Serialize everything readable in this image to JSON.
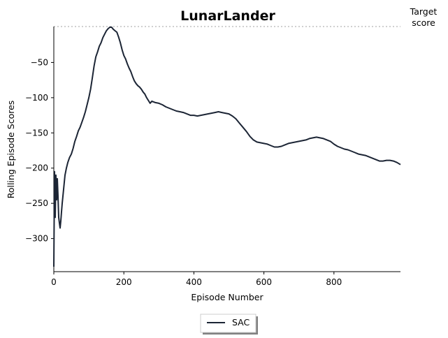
{
  "chart_data": {
    "type": "line",
    "title": "LunarLander",
    "xlabel": "Episode Number",
    "ylabel": "Rolling Episode Scores",
    "xlim": [
      0,
      990
    ],
    "ylim": [
      -347,
      1
    ],
    "xticks": [
      0,
      200,
      400,
      600,
      800
    ],
    "yticks": [
      -50,
      -100,
      -150,
      -200,
      -250,
      -300
    ],
    "target_score": 1,
    "target_label_line1": "Target",
    "target_label_line2": "score",
    "legend": {
      "position": "bottom-center",
      "label": "SAC"
    },
    "grid": false,
    "colors": {
      "series": "#1c2535",
      "target": "#a0a0a0"
    },
    "series": [
      {
        "name": "SAC",
        "x": [
          0,
          2,
          4,
          6,
          8,
          10,
          12,
          14,
          16,
          18,
          20,
          22,
          24,
          26,
          28,
          30,
          32,
          34,
          36,
          38,
          40,
          45,
          50,
          55,
          60,
          65,
          70,
          75,
          80,
          85,
          90,
          95,
          100,
          105,
          110,
          115,
          120,
          125,
          130,
          135,
          140,
          145,
          150,
          155,
          160,
          165,
          170,
          175,
          180,
          185,
          190,
          195,
          200,
          205,
          210,
          215,
          220,
          225,
          230,
          235,
          240,
          245,
          250,
          255,
          260,
          265,
          270,
          275,
          280,
          290,
          300,
          310,
          320,
          330,
          340,
          350,
          360,
          370,
          380,
          390,
          400,
          410,
          420,
          430,
          440,
          450,
          460,
          470,
          480,
          490,
          500,
          510,
          520,
          530,
          540,
          550,
          560,
          570,
          580,
          590,
          600,
          610,
          620,
          630,
          640,
          650,
          660,
          670,
          680,
          690,
          700,
          710,
          720,
          730,
          740,
          750,
          760,
          770,
          780,
          790,
          800,
          810,
          820,
          830,
          840,
          850,
          860,
          870,
          880,
          890,
          900,
          910,
          920,
          930,
          940,
          950,
          960,
          970,
          980,
          990
        ],
        "y": [
          -340,
          -205,
          -270,
          -210,
          -245,
          -215,
          -240,
          -270,
          -278,
          -285,
          -275,
          -262,
          -250,
          -240,
          -230,
          -220,
          -210,
          -205,
          -200,
          -196,
          -192,
          -185,
          -180,
          -172,
          -162,
          -155,
          -147,
          -142,
          -135,
          -128,
          -120,
          -110,
          -100,
          -88,
          -72,
          -55,
          -42,
          -35,
          -27,
          -22,
          -15,
          -10,
          -5,
          -2,
          0,
          0,
          -3,
          -5,
          -7,
          -14,
          -22,
          -32,
          -40,
          -45,
          -52,
          -58,
          -63,
          -70,
          -76,
          -80,
          -83,
          -85,
          -88,
          -92,
          -95,
          -100,
          -104,
          -108,
          -105,
          -107,
          -108,
          -110,
          -113,
          -115,
          -117,
          -119,
          -120,
          -121,
          -123,
          -125,
          -125,
          -126,
          -125,
          -124,
          -123,
          -122,
          -121,
          -120,
          -121,
          -122,
          -123,
          -126,
          -130,
          -136,
          -142,
          -148,
          -155,
          -160,
          -163,
          -164,
          -165,
          -166,
          -168,
          -170,
          -170,
          -169,
          -167,
          -165,
          -164,
          -163,
          -162,
          -161,
          -160,
          -158,
          -157,
          -156,
          -157,
          -158,
          -160,
          -162,
          -166,
          -169,
          -171,
          -173,
          -174,
          -176,
          -178,
          -180,
          -181,
          -182,
          -184,
          -186,
          -188,
          -190,
          -190,
          -189,
          -189,
          -190,
          -192,
          -195
        ]
      }
    ]
  }
}
